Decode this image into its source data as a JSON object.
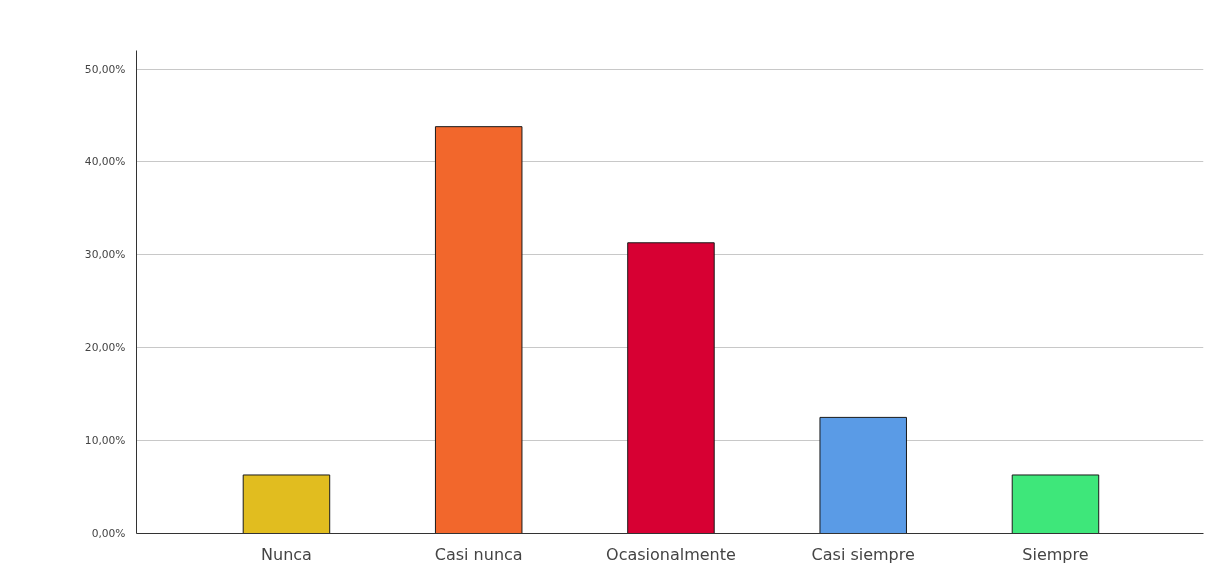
{
  "chart_data": {
    "type": "bar",
    "categories": [
      "Nunca",
      "Casi nunca",
      "Ocasionalmente",
      "Casi siempre",
      "Siempre"
    ],
    "values": [
      6.3,
      43.8,
      31.3,
      12.5,
      6.3
    ],
    "colors": [
      "#e1bd1f",
      "#f2672c",
      "#d70033",
      "#5a9be6",
      "#3ee77a"
    ],
    "ylim": [
      0,
      52
    ],
    "yticks": [
      {
        "value": 0,
        "label": "0,00%"
      },
      {
        "value": 10,
        "label": "10,00%"
      },
      {
        "value": 20,
        "label": "20,00%"
      },
      {
        "value": 30,
        "label": "30,00%"
      },
      {
        "value": 40,
        "label": "40,00%"
      },
      {
        "value": 50,
        "label": "50,00%"
      }
    ],
    "grid": "y"
  }
}
